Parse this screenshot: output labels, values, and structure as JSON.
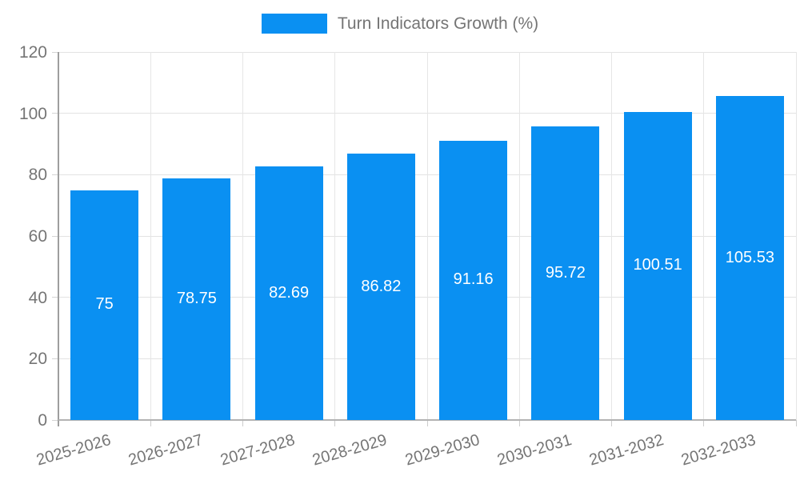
{
  "chart_data": {
    "type": "bar",
    "title": "Turn Indicators Growth (%)",
    "categories": [
      "2025-2026",
      "2026-2027",
      "2027-2028",
      "2028-2029",
      "2029-2030",
      "2030-2031",
      "2031-2032",
      "2032-2033"
    ],
    "series": [
      {
        "name": "Turn Indicators Growth (%)",
        "values": [
          75,
          78.75,
          82.69,
          86.82,
          91.16,
          95.72,
          100.51,
          105.53
        ],
        "value_labels": [
          "75",
          "78.75",
          "82.69",
          "86.82",
          "91.16",
          "95.72",
          "100.51",
          "105.53"
        ]
      }
    ],
    "xlabel": "",
    "ylabel": "",
    "ylim": [
      0,
      120
    ],
    "yticks": [
      0,
      20,
      40,
      60,
      80,
      100,
      120
    ],
    "grid": true,
    "legend_position": "top",
    "bar_label_position": "inside-center"
  },
  "colors": {
    "bar": "#0a90f2",
    "bar_label": "#ffffff",
    "grid": "#e3e3e3",
    "axis_line": "#9e9e9e",
    "tick_text": "#757575",
    "legend_text": "#757575",
    "background": "#ffffff"
  }
}
